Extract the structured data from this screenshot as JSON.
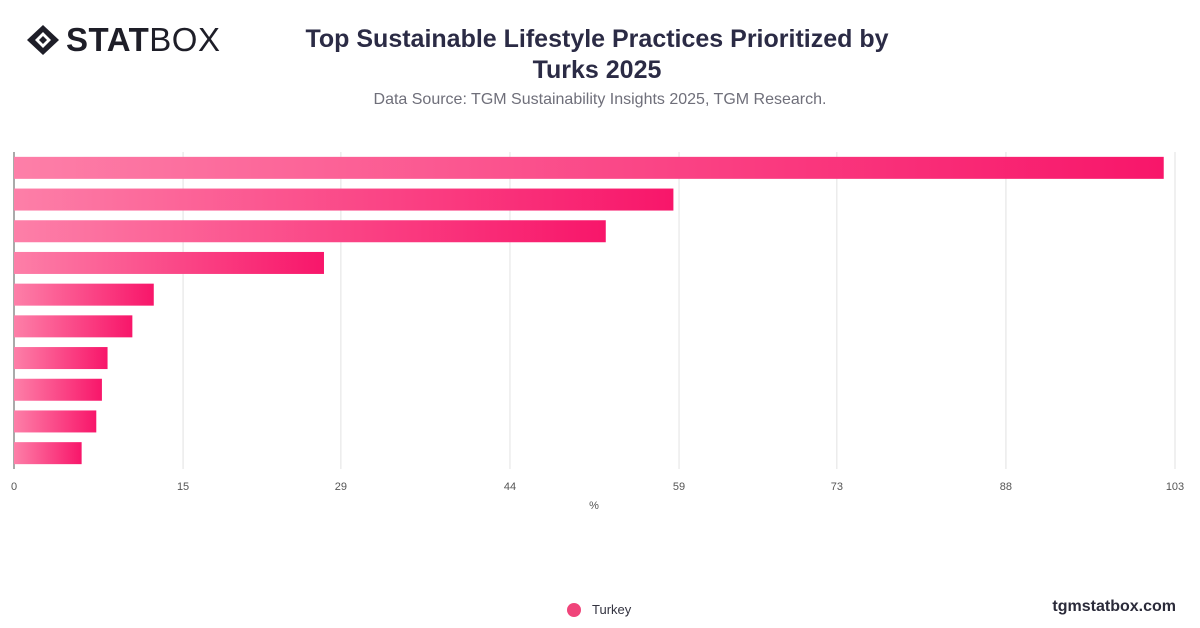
{
  "brand": {
    "logo_bold": "STAT",
    "logo_light": "BOX",
    "site": "tgmstatbox.com"
  },
  "header": {
    "title_line1": "Top Sustainable Lifestyle Practices Prioritized by",
    "title_line2": "Turks 2025",
    "subtitle": "Data Source: TGM Sustainability Insights 2025, TGM Research."
  },
  "colors": {
    "bar_start": "#fd7fa8",
    "bar_end": "#f8166a",
    "grid": "#e2e2e2",
    "axis": "#555555"
  },
  "chart_data": {
    "type": "bar",
    "orientation": "horizontal",
    "xlabel": "%",
    "ylabel": "",
    "xlim": [
      0,
      103
    ],
    "ticks": [
      "0",
      "15",
      "29",
      "44",
      "59",
      "73",
      "88",
      "103"
    ],
    "grid": true,
    "legend_position": "bottom",
    "series": [
      {
        "name": "Turkey",
        "values": [
          102,
          58.5,
          52.5,
          27.5,
          12.4,
          10.5,
          8.3,
          7.8,
          7.3,
          6
        ]
      }
    ]
  }
}
